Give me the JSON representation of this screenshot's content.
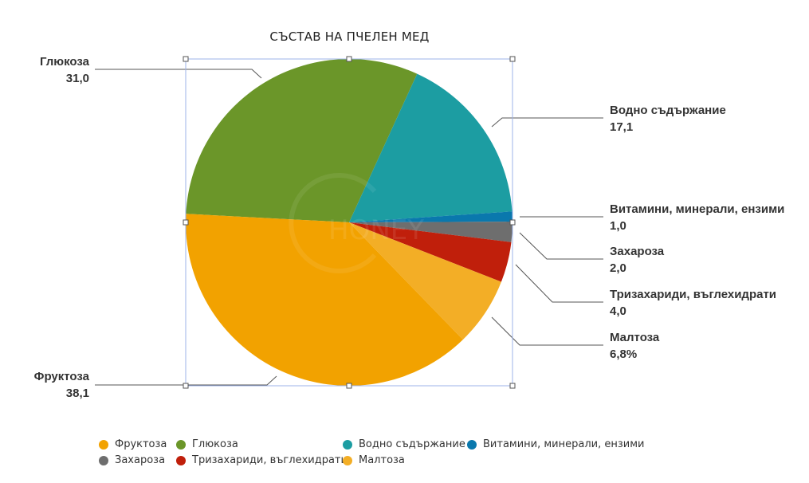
{
  "chart_data": {
    "type": "pie",
    "title": "СЪСТАВ НА ПЧЕЛЕН МЕД",
    "categories": [
      "Фруктоза",
      "Глюкоза",
      "Водно съдържание",
      "Витамини, минерали, ензими",
      "Захароза",
      "Тризахариди, въглехидрати",
      "Малтоза"
    ],
    "values": [
      38.1,
      31.0,
      17.1,
      1.0,
      2.0,
      4.0,
      6.8
    ],
    "data_labels": [
      "38,1",
      "31,0",
      "17,1",
      "1,0",
      "2,0",
      "4,0",
      "6,8%"
    ],
    "colors": [
      "#f2a200",
      "#6b9629",
      "#1c9da2",
      "#0a78ad",
      "#6e6e6e",
      "#c01f0b",
      "#f3ae26"
    ],
    "legend_position": "bottom",
    "watermark": "G HONEY"
  },
  "title": "СЪСТАВ НА ПЧЕЛЕН МЕД",
  "labels": {
    "glucose": {
      "name": "Глюкоза",
      "value": "31,0"
    },
    "fructose": {
      "name": "Фруктоза",
      "value": "38,1"
    },
    "water": {
      "name": "Водно съдържание",
      "value": "17,1"
    },
    "vitamins": {
      "name": "Витамини, минерали, ензими",
      "value": "1,0"
    },
    "sucrose": {
      "name": "Захароза",
      "value": "2,0"
    },
    "tri": {
      "name": "Тризахариди, въглехидрати",
      "value": "4,0"
    },
    "maltose": {
      "name": "Малтоза",
      "value": "6,8%"
    }
  },
  "legend": [
    {
      "label": "Фруктоза",
      "color": "#f2a200"
    },
    {
      "label": "Глюкоза",
      "color": "#6b9629"
    },
    {
      "label": "Водно съдържание",
      "color": "#1c9da2"
    },
    {
      "label": "Витамини, минерали, ензими",
      "color": "#0a78ad"
    },
    {
      "label": "Захароза",
      "color": "#6e6e6e"
    },
    {
      "label": "Тризахариди, въглехидрати",
      "color": "#c01f0b"
    },
    {
      "label": "Малтоза",
      "color": "#f3ae26"
    }
  ]
}
